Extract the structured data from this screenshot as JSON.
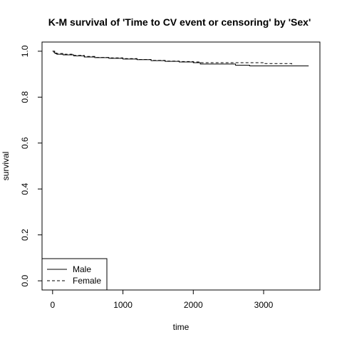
{
  "chart_data": {
    "type": "line",
    "title": "K-M survival of 'Time to CV event or censoring' by 'Sex'",
    "xlabel": "time",
    "ylabel": "survival",
    "xlim": [
      -150,
      3800
    ],
    "ylim": [
      -0.04,
      1.04
    ],
    "x_ticks": [
      0,
      1000,
      2000,
      3000
    ],
    "y_ticks": [
      0.0,
      0.2,
      0.4,
      0.6,
      0.8,
      1.0
    ],
    "x_tick_labels": [
      "0",
      "1000",
      "2000",
      "3000"
    ],
    "y_tick_labels": [
      "0.0",
      "0.2",
      "0.4",
      "0.6",
      "0.8",
      "1.0"
    ],
    "grid": false,
    "legend_position": "bottom-left",
    "series": [
      {
        "name": "Male",
        "line_style": "solid",
        "color": "#000000",
        "x": [
          0,
          30,
          60,
          150,
          300,
          450,
          600,
          800,
          1000,
          1200,
          1400,
          1600,
          1800,
          2000,
          2100,
          2550,
          2600,
          2800,
          3640
        ],
        "y": [
          1.0,
          0.992,
          0.987,
          0.984,
          0.98,
          0.975,
          0.972,
          0.969,
          0.966,
          0.963,
          0.959,
          0.956,
          0.953,
          0.95,
          0.944,
          0.944,
          0.939,
          0.936,
          0.936
        ]
      },
      {
        "name": "Female",
        "line_style": "dashed",
        "color": "#000000",
        "x": [
          0,
          20,
          40,
          80,
          150,
          300,
          450,
          600,
          800,
          1000,
          1200,
          1400,
          1600,
          1800,
          2000,
          2100,
          2600,
          3000,
          3300,
          3400
        ],
        "y": [
          1.0,
          0.995,
          0.99,
          0.99,
          0.987,
          0.982,
          0.977,
          0.973,
          0.971,
          0.968,
          0.964,
          0.96,
          0.957,
          0.955,
          0.953,
          0.95,
          0.95,
          0.946,
          0.946,
          0.94
        ]
      }
    ]
  }
}
